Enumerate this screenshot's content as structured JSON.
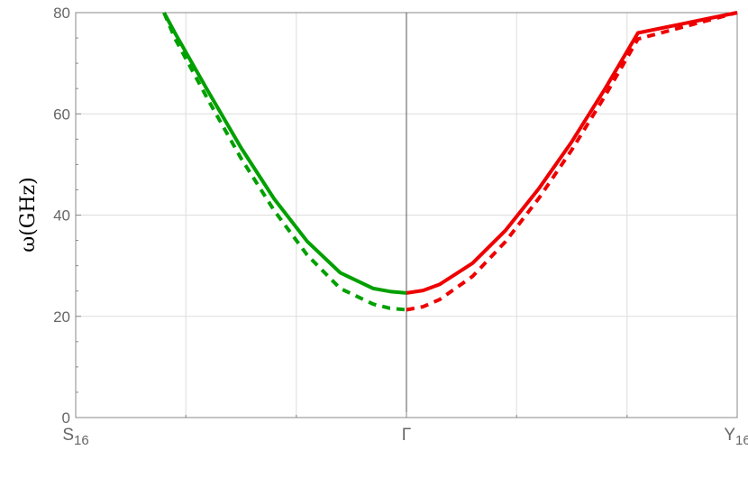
{
  "chart_data": {
    "type": "line",
    "title": "",
    "ylabel": "ω(GHz)",
    "xlabel": "",
    "xlim": [
      -1,
      1
    ],
    "ylim": [
      0,
      80
    ],
    "y_ticks": [
      {
        "value": 0,
        "label": "0"
      },
      {
        "value": 20,
        "label": "20"
      },
      {
        "value": 40,
        "label": "40"
      },
      {
        "value": 60,
        "label": "60"
      },
      {
        "value": 80,
        "label": "80"
      }
    ],
    "x_ticks": [
      {
        "value": -1,
        "label": "S",
        "sub": "16"
      },
      {
        "value": 0,
        "label": "Γ",
        "sub": ""
      },
      {
        "value": 1,
        "label": "Y",
        "sub": "16"
      }
    ],
    "x_gridlines": [
      -1,
      -0.667,
      -0.333,
      0,
      0.333,
      0.667,
      1
    ],
    "y_gridlines": [
      20,
      40,
      60
    ],
    "grid": true,
    "colors": {
      "left": "#00a000",
      "right": "#ee0000",
      "axis": "#888888",
      "grid": "#dddddd"
    },
    "series": [
      {
        "style": "solid",
        "color": "#00a000",
        "x": [
          -0.733,
          -0.7,
          -0.6,
          -0.5,
          -0.4,
          -0.3,
          -0.2,
          -0.1,
          -0.05,
          0
        ],
        "y": [
          80,
          76.0,
          64.5,
          53.3,
          43.2,
          34.8,
          28.6,
          25.5,
          24.9,
          24.6
        ]
      },
      {
        "style": "dashed",
        "color": "#00a000",
        "x": [
          -0.733,
          -0.7,
          -0.6,
          -0.5,
          -0.4,
          -0.3,
          -0.2,
          -0.1,
          -0.05,
          0
        ],
        "y": [
          80,
          74.9,
          62.8,
          51.2,
          40.9,
          32.1,
          25.5,
          22.4,
          21.6,
          21.3
        ]
      },
      {
        "style": "solid",
        "color": "#ee0000",
        "x": [
          0,
          0.05,
          0.1,
          0.2,
          0.3,
          0.4,
          0.5,
          0.6,
          0.7,
          1.0
        ],
        "y": [
          24.6,
          25.1,
          26.3,
          30.5,
          37.0,
          45.2,
          54.5,
          64.9,
          76.0,
          80
        ]
      },
      {
        "style": "dashed",
        "color": "#ee0000",
        "x": [
          0,
          0.05,
          0.1,
          0.2,
          0.3,
          0.4,
          0.5,
          0.6,
          0.7,
          1.0
        ],
        "y": [
          21.3,
          21.9,
          23.3,
          27.9,
          34.8,
          43.3,
          52.9,
          63.5,
          74.8,
          80
        ]
      }
    ]
  }
}
